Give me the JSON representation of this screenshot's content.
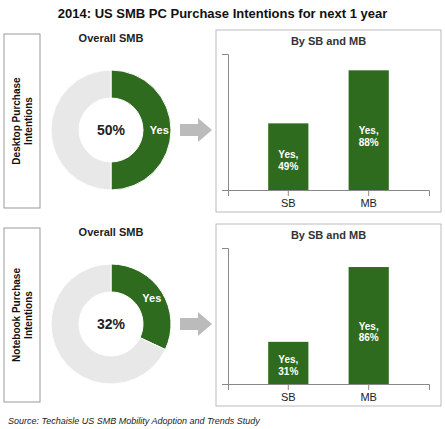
{
  "title": "2014: US SMB PC Purchase Intentions for next 1 year",
  "annotations": [
    "Source: Techaisle US SMB Mobility Adoption and Trends Study"
  ],
  "chart_data": [
    {
      "type": "pie",
      "title": "Overall SMB",
      "annotations": [
        "Desktop Purchase\nIntentions"
      ],
      "categories": [
        "Yes",
        null
      ],
      "values": [
        50,
        50
      ],
      "colors": [
        "#2E6B1E",
        "#E8E8E8"
      ],
      "data_labels": true,
      "value_labels": [
        "50%",
        null
      ]
    },
    {
      "type": "bar",
      "title": "By SB and MB",
      "categories": [
        "SB",
        "MB"
      ],
      "values": [
        49,
        88
      ],
      "color": "#2E6B1E",
      "ylim": [
        0,
        100
      ],
      "yticks": [],
      "tick_labels": "x",
      "data_labels": true,
      "value_labels": [
        "Yes,\n49%",
        "Yes,\n88%"
      ]
    },
    {
      "type": "pie",
      "title": "Overall SMB",
      "annotations": [
        "Notebook Purchase\nIntentions"
      ],
      "categories": [
        "Yes",
        null
      ],
      "values": [
        32,
        68
      ],
      "colors": [
        "#2E6B1E",
        "#E8E8E8"
      ],
      "data_labels": true,
      "value_labels": [
        "32%",
        null
      ]
    },
    {
      "type": "bar",
      "title": "By SB and MB",
      "categories": [
        "SB",
        "MB"
      ],
      "values": [
        31,
        86
      ],
      "color": "#2E6B1E",
      "ylim": [
        0,
        100
      ],
      "yticks": [],
      "tick_labels": "x",
      "data_labels": true,
      "value_labels": [
        "Yes,\n31%",
        "Yes,\n86%"
      ]
    }
  ]
}
